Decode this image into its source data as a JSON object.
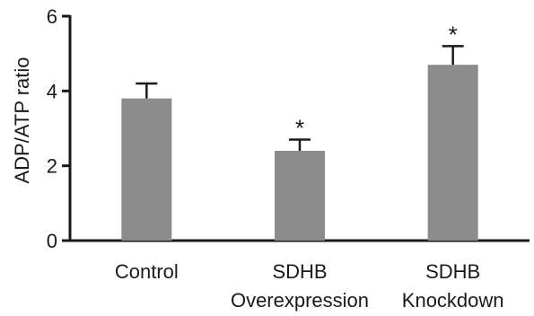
{
  "chart_data": {
    "type": "bar",
    "title": "",
    "xlabel": "",
    "ylabel": "ADP/ATP ratio",
    "ylim": [
      0,
      6
    ],
    "yticks": [
      0,
      2,
      4,
      6
    ],
    "grid": false,
    "categories": [
      [
        "Control"
      ],
      [
        "SDHB",
        "Overexpression"
      ],
      [
        "SDHB",
        "Knockdown"
      ]
    ],
    "values": [
      3.8,
      2.4,
      4.7
    ],
    "error_upper": [
      0.4,
      0.3,
      0.5
    ],
    "significance": [
      "",
      "*",
      "*"
    ],
    "bar_color": "#8c8c8c",
    "axis_color": "#1a1a1a"
  }
}
